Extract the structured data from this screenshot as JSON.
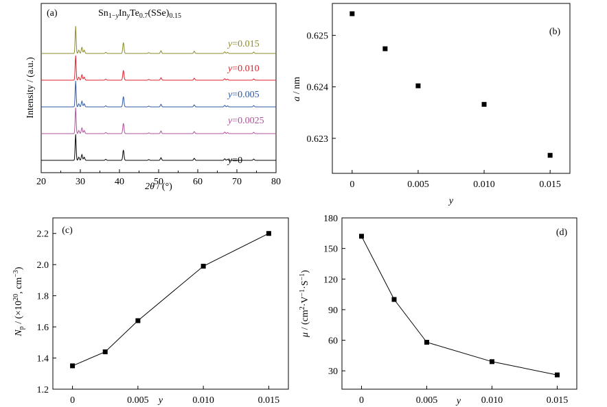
{
  "chart_data": [
    {
      "panel": "(a)",
      "type": "line",
      "title": "Sn1−yInyTe0.7(SSe)0.15",
      "title_parts": {
        "base1": "Sn",
        "sub1": "1−",
        "suby1": "y",
        "base2": "In",
        "sup_y2": "y",
        "base3": "Te",
        "sub3": "0.7",
        "base4": "(SSe)",
        "sub4": "0.15"
      },
      "xlabel_symbol": "2θ",
      "xlabel_unit": " / (°)",
      "ylabel": "Intensity / (a.u.)",
      "xlim": [
        20,
        80
      ],
      "xticks": [
        "20",
        "30",
        "40",
        "50",
        "60",
        "70",
        "80"
      ],
      "yticks_shown": false,
      "peaks": [
        {
          "x": 28.8,
          "h": 1.0
        },
        {
          "x": 29.6,
          "h": 0.12
        },
        {
          "x": 30.4,
          "h": 0.22
        },
        {
          "x": 31.0,
          "h": 0.12
        },
        {
          "x": 36.5,
          "h": 0.04
        },
        {
          "x": 41.0,
          "h": 0.4
        },
        {
          "x": 47.5,
          "h": 0.03
        },
        {
          "x": 50.6,
          "h": 0.1
        },
        {
          "x": 59.1,
          "h": 0.08
        },
        {
          "x": 66.9,
          "h": 0.06
        },
        {
          "x": 67.6,
          "h": 0.04
        },
        {
          "x": 74.3,
          "h": 0.05
        }
      ],
      "series": [
        {
          "name": "y=0",
          "prefix": "y",
          "value": "=0",
          "color": "#000000"
        },
        {
          "name": "y=0.0025",
          "prefix": "y",
          "value": "=0.0025",
          "color": "#b0509a"
        },
        {
          "name": "y=0.005",
          "prefix": "y",
          "value": "=0.005",
          "color": "#2d57a6"
        },
        {
          "name": "y=0.010",
          "prefix": "y",
          "value": "=0.010",
          "color": "#e3202a"
        },
        {
          "name": "y=0.015",
          "prefix": "y",
          "value": "=0.015",
          "color": "#8c8a2a"
        }
      ]
    },
    {
      "panel": "(b)",
      "type": "scatter",
      "xlabel": "y",
      "ylabel_symbol": "a",
      "ylabel_unit": " / nm",
      "xlim": [
        -0.0015,
        0.0165
      ],
      "ylim": [
        0.62232,
        0.62562
      ],
      "xticks": [
        {
          "v": 0,
          "label": "0"
        },
        {
          "v": 0.005,
          "label": "0.005"
        },
        {
          "v": 0.01,
          "label": "0.010"
        },
        {
          "v": 0.015,
          "label": "0.015"
        }
      ],
      "yticks": [
        {
          "v": 0.623,
          "label": "0.623"
        },
        {
          "v": 0.624,
          "label": "0.624"
        },
        {
          "v": 0.625,
          "label": "0.625"
        }
      ],
      "x": [
        0,
        0.0025,
        0.005,
        0.01,
        0.015
      ],
      "y": [
        0.62542,
        0.62474,
        0.62402,
        0.62366,
        0.62267
      ]
    },
    {
      "panel": "(c)",
      "type": "line",
      "xlabel": "y",
      "ylabel_symbol": "N",
      "ylabel_sub": "p",
      "ylabel_unit_a": " / (×10",
      "ylabel_sup": "20",
      "ylabel_unit_b": ", cm",
      "ylabel_sup2": "−3",
      "ylabel_unit_c": ")",
      "xlim": [
        -0.0015,
        0.0165
      ],
      "ylim": [
        1.2,
        2.3
      ],
      "xticks": [
        {
          "v": 0,
          "label": "0"
        },
        {
          "v": 0.005,
          "label": "0.005"
        },
        {
          "v": 0.01,
          "label": "0.010"
        },
        {
          "v": 0.015,
          "label": "0.015"
        }
      ],
      "yticks": [
        {
          "v": 1.2,
          "label": "1.2"
        },
        {
          "v": 1.4,
          "label": "1.4"
        },
        {
          "v": 1.6,
          "label": "1.6"
        },
        {
          "v": 1.8,
          "label": "1.8"
        },
        {
          "v": 2.0,
          "label": "2.0"
        },
        {
          "v": 2.2,
          "label": "2.2"
        }
      ],
      "x": [
        0,
        0.0025,
        0.005,
        0.01,
        0.015
      ],
      "y": [
        1.35,
        1.44,
        1.64,
        1.99,
        2.2
      ]
    },
    {
      "panel": "(d)",
      "type": "line",
      "xlabel": "y",
      "ylabel_symbol": "μ",
      "ylabel_unit_a": " / (cm",
      "ylabel_sup1": "2",
      "ylabel_unit_b": "·V",
      "ylabel_sup2": "−1",
      "ylabel_unit_c": "·S",
      "ylabel_sup3": "−1",
      "ylabel_unit_d": ")",
      "xlim": [
        -0.0015,
        0.0165
      ],
      "ylim": [
        12,
        180
      ],
      "xticks": [
        {
          "v": 0,
          "label": "0"
        },
        {
          "v": 0.005,
          "label": "0.005"
        },
        {
          "v": 0.01,
          "label": "0.010"
        },
        {
          "v": 0.015,
          "label": "0.015"
        }
      ],
      "yticks": [
        {
          "v": 30,
          "label": "30"
        },
        {
          "v": 60,
          "label": "60"
        },
        {
          "v": 90,
          "label": "90"
        },
        {
          "v": 120,
          "label": "120"
        },
        {
          "v": 150,
          "label": "150"
        },
        {
          "v": 180,
          "label": "180"
        }
      ],
      "x": [
        0,
        0.0025,
        0.005,
        0.01,
        0.015
      ],
      "y": [
        162,
        100,
        58,
        39,
        26
      ]
    }
  ]
}
